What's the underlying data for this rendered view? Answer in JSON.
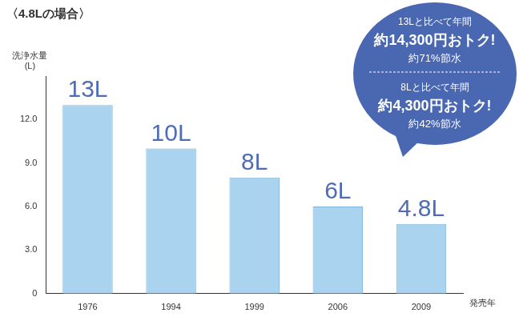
{
  "chart_data": {
    "type": "bar",
    "title": "〈4.8Lの場合〉",
    "ylabel": "洗浄水量\n(L)",
    "xlabel": "発売年",
    "categories": [
      "1976",
      "1994",
      "1999",
      "2006",
      "2009"
    ],
    "values": [
      13,
      10,
      8,
      6,
      4.8
    ],
    "value_labels": [
      "13L",
      "10L",
      "8L",
      "6L",
      "4.8L"
    ],
    "data_labels": true,
    "color": "#a9d3ee",
    "ylim": [
      0,
      15
    ],
    "yticks": [
      0,
      {
        "value": 3,
        "label": "3.0"
      },
      {
        "value": 6,
        "label": "6.0"
      },
      {
        "value": 9,
        "label": "9.0"
      },
      {
        "value": 12,
        "label": "12.0"
      }
    ],
    "grid": false,
    "annotations": [
      [
        "13Lと比べて年間",
        "約14,300円おトク!",
        "約71%節水"
      ],
      [
        "8Lと比べて年間",
        "約4,300円おトク!",
        "約42%節水"
      ]
    ]
  }
}
